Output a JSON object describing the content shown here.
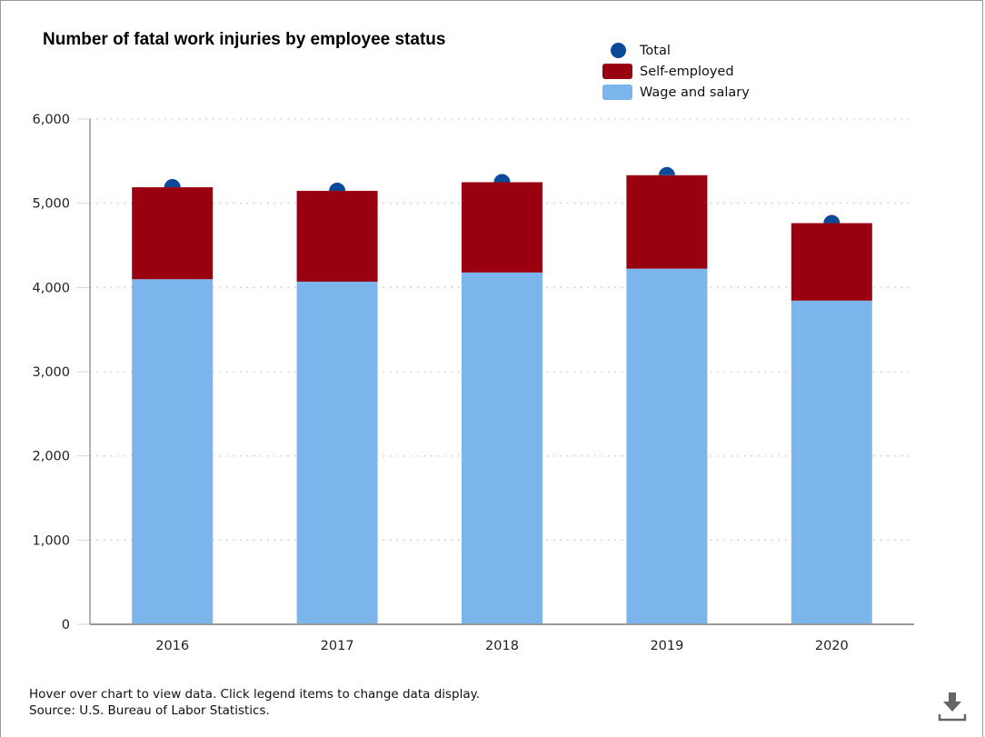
{
  "chart_data": {
    "type": "bar",
    "stacked": true,
    "title": "Number of fatal work injuries by employee status",
    "categories": [
      "2016",
      "2017",
      "2018",
      "2019",
      "2020"
    ],
    "series": [
      {
        "name": "Wage and salary",
        "kind": "bar",
        "color": "#7cb5ec",
        "values": [
          4098,
          4069,
          4178,
          4224,
          3844
        ]
      },
      {
        "name": "Self-employed",
        "kind": "bar",
        "color": "#990010",
        "values": [
          1092,
          1078,
          1072,
          1109,
          920
        ]
      },
      {
        "name": "Total",
        "kind": "scatter",
        "color": "#0a4a9a",
        "values": [
          5190,
          5147,
          5250,
          5333,
          4764
        ]
      }
    ],
    "legend": {
      "position": "top-right",
      "items": [
        {
          "name": "Total",
          "symbol": "circle",
          "color": "#0a4a9a"
        },
        {
          "name": "Self-employed",
          "symbol": "rect",
          "color": "#990010"
        },
        {
          "name": "Wage and salary",
          "symbol": "rect",
          "color": "#7cb5ec"
        }
      ]
    },
    "xlabel": "",
    "ylabel": "",
    "ylim": [
      0,
      6000
    ],
    "yticks": [
      0,
      1000,
      2000,
      3000,
      4000,
      5000,
      6000
    ],
    "ytick_labels": [
      "0",
      "1,000",
      "2,000",
      "3,000",
      "4,000",
      "5,000",
      "6,000"
    ],
    "grid": "horizontal-dotted"
  },
  "footer": {
    "line1": "Hover over chart to view data. Click legend items to change data display.",
    "line2": "Source: U.S. Bureau of Labor Statistics."
  },
  "download_icon": "download-icon"
}
